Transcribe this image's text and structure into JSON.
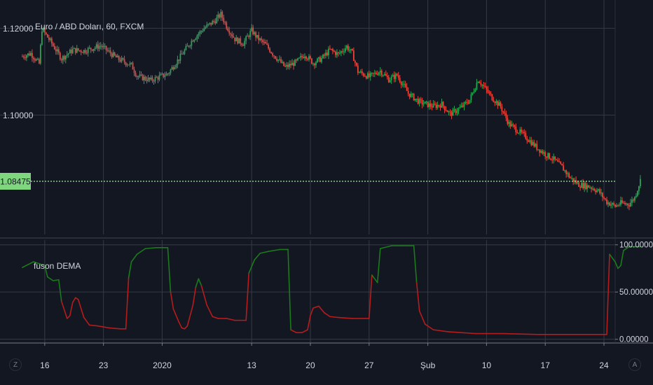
{
  "chart_data": [
    {
      "type": "candlestick",
      "title": "Euro / ABD Doları, 60, FXCM",
      "yticks": [
        "1.12000",
        "1.10000"
      ],
      "ytick_values": [
        1.12,
        1.1
      ],
      "ylim": [
        1.0725,
        1.1265
      ],
      "last_price": "1.08475",
      "last_price_value": 1.08475,
      "grid": true,
      "price_path": [
        [
          0,
          1.1135
        ],
        [
          3,
          1.1142
        ],
        [
          6,
          1.1118
        ],
        [
          7,
          1.1198
        ],
        [
          10,
          1.117
        ],
        [
          14,
          1.113
        ],
        [
          18,
          1.115
        ],
        [
          22,
          1.1148
        ],
        [
          28,
          1.116
        ],
        [
          34,
          1.113
        ],
        [
          39,
          1.1115
        ],
        [
          41,
          1.109
        ],
        [
          46,
          1.108
        ],
        [
          49,
          1.1088
        ],
        [
          52,
          1.1095
        ],
        [
          56,
          1.113
        ],
        [
          61,
          1.1175
        ],
        [
          65,
          1.12
        ],
        [
          69,
          1.1218
        ],
        [
          71,
          1.1232
        ],
        [
          73,
          1.1205
        ],
        [
          76,
          1.1175
        ],
        [
          79,
          1.1165
        ],
        [
          82,
          1.1195
        ],
        [
          84,
          1.1178
        ],
        [
          87,
          1.1162
        ],
        [
          90,
          1.1138
        ],
        [
          94,
          1.111
        ],
        [
          98,
          1.1122
        ],
        [
          101,
          1.114
        ],
        [
          104,
          1.112
        ],
        [
          107,
          1.113
        ],
        [
          110,
          1.115
        ],
        [
          113,
          1.114
        ],
        [
          116,
          1.1158
        ],
        [
          118,
          1.1142
        ],
        [
          120,
          1.11
        ],
        [
          124,
          1.1088
        ],
        [
          128,
          1.1102
        ],
        [
          131,
          1.1082
        ],
        [
          134,
          1.1092
        ],
        [
          138,
          1.105
        ],
        [
          142,
          1.103
        ],
        [
          147,
          1.102
        ],
        [
          150,
          1.1025
        ],
        [
          153,
          1.1002
        ],
        [
          157,
          1.1018
        ],
        [
          160,
          1.1035
        ],
        [
          163,
          1.1082
        ],
        [
          165,
          1.1065
        ],
        [
          168,
          1.104
        ],
        [
          171,
          1.102
        ],
        [
          174,
          1.098
        ],
        [
          177,
          1.0965
        ],
        [
          180,
          1.095
        ],
        [
          184,
          1.0925
        ],
        [
          187,
          1.091
        ],
        [
          190,
          1.0898
        ],
        [
          193,
          1.088
        ],
        [
          196,
          1.0855
        ],
        [
          199,
          1.084
        ],
        [
          203,
          1.0835
        ],
        [
          206,
          1.0825
        ],
        [
          209,
          1.08
        ],
        [
          212,
          1.079
        ],
        [
          214,
          1.0797
        ],
        [
          217,
          1.0795
        ],
        [
          219,
          1.081
        ],
        [
          221,
          1.085
        ]
      ]
    },
    {
      "type": "line",
      "title": "fuson DEMA",
      "yticks": [
        "100.00000",
        "50.00000",
        "0.00000"
      ],
      "ytick_values": [
        100,
        50,
        0
      ],
      "ylim": [
        -4,
        105
      ],
      "bullish_color": "#1b7a1b",
      "bearish_color": "#b71c1c",
      "threshold": 50,
      "series": [
        [
          0,
          76
        ],
        [
          4,
          82
        ],
        [
          8,
          78
        ],
        [
          9,
          66
        ],
        [
          11,
          62
        ],
        [
          13,
          63
        ],
        [
          14,
          40
        ],
        [
          16,
          22
        ],
        [
          17,
          25
        ],
        [
          18,
          39
        ],
        [
          19,
          44
        ],
        [
          20,
          42
        ],
        [
          22,
          23
        ],
        [
          24,
          15
        ],
        [
          27,
          14
        ],
        [
          31,
          12
        ],
        [
          35,
          11
        ],
        [
          37,
          11
        ],
        [
          38,
          65
        ],
        [
          39,
          82
        ],
        [
          41,
          90
        ],
        [
          44,
          96
        ],
        [
          48,
          97
        ],
        [
          52,
          97
        ],
        [
          53,
          50
        ],
        [
          54,
          32
        ],
        [
          56,
          18
        ],
        [
          57,
          12
        ],
        [
          58,
          11
        ],
        [
          59,
          14
        ],
        [
          61,
          36
        ],
        [
          62,
          55
        ],
        [
          63,
          64
        ],
        [
          64,
          57
        ],
        [
          66,
          36
        ],
        [
          68,
          24
        ],
        [
          70,
          22
        ],
        [
          73,
          22
        ],
        [
          76,
          20
        ],
        [
          80,
          20
        ],
        [
          81,
          70
        ],
        [
          83,
          84
        ],
        [
          85,
          91
        ],
        [
          88,
          93
        ],
        [
          92,
          95
        ],
        [
          95,
          95
        ],
        [
          96,
          10
        ],
        [
          98,
          7
        ],
        [
          100,
          7
        ],
        [
          102,
          10
        ],
        [
          103,
          25
        ],
        [
          104,
          33
        ],
        [
          106,
          35
        ],
        [
          108,
          28
        ],
        [
          110,
          24
        ],
        [
          113,
          23
        ],
        [
          118,
          22
        ],
        [
          124,
          22
        ],
        [
          125,
          68
        ],
        [
          127,
          60
        ],
        [
          128,
          96
        ],
        [
          132,
          99
        ],
        [
          136,
          99
        ],
        [
          140,
          99
        ],
        [
          141,
          60
        ],
        [
          142,
          30
        ],
        [
          144,
          16
        ],
        [
          147,
          10
        ],
        [
          152,
          8
        ],
        [
          157,
          7
        ],
        [
          162,
          6
        ],
        [
          166,
          6
        ],
        [
          172,
          6
        ],
        [
          185,
          5
        ],
        [
          203,
          5
        ],
        [
          209,
          5
        ],
        [
          210,
          90
        ],
        [
          212,
          82
        ],
        [
          213,
          75
        ],
        [
          214,
          78
        ],
        [
          215,
          94
        ],
        [
          217,
          98
        ],
        [
          221,
          98
        ]
      ]
    }
  ],
  "x_axis": {
    "labels": [
      "16",
      "23",
      "2020",
      "13",
      "20",
      "27",
      "Şub",
      "10",
      "17",
      "24"
    ],
    "label_positions": [
      8,
      29,
      50,
      82,
      103,
      124,
      145,
      166,
      187,
      208
    ],
    "domain": [
      -8,
      212
    ]
  },
  "controls": {
    "timezone_button": "Z",
    "auto_scale_button": "A"
  },
  "colors": {
    "background": "#131722",
    "grid": "#363a45",
    "text": "#d1d4dc",
    "candle_up": "#26a653",
    "candle_down": "#e8453c",
    "price_line": "#9ee89e",
    "price_label_bg": "#7fd67f"
  }
}
